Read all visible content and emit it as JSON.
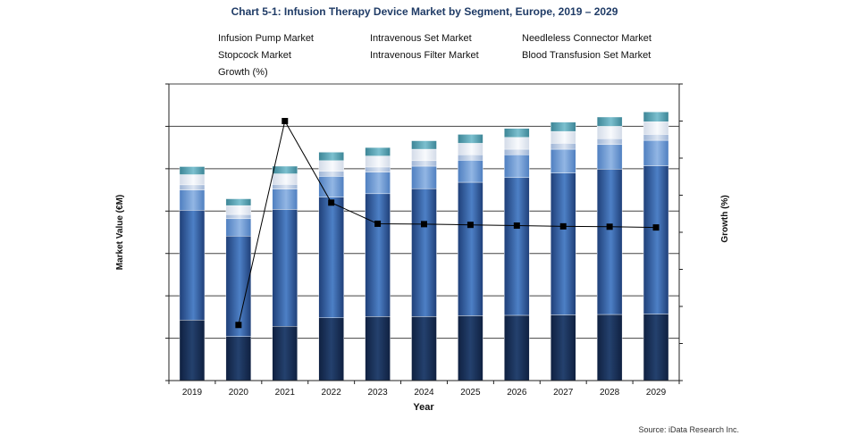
{
  "chart_data": {
    "type": "bar",
    "stacked": true,
    "title": "Chart 5-1: Infusion Therapy Device Market by Segment, Europe, 2019 – 2029",
    "xlabel": "Year",
    "ylabel": "Market Value (€M)",
    "y2label": "Growth (%)",
    "categories": [
      "2019",
      "2020",
      "2021",
      "2022",
      "2023",
      "2024",
      "2025",
      "2026",
      "2027",
      "2028",
      "2029"
    ],
    "ylim": [
      0,
      70
    ],
    "y2lim": [
      -40,
      40
    ],
    "grid": true,
    "legend_position": "top",
    "series": [
      {
        "name": "Infusion Pump Market",
        "values": [
          14.3,
          10.4,
          12.8,
          14.8,
          15.1,
          15.1,
          15.3,
          15.4,
          15.5,
          15.6,
          15.7
        ]
      },
      {
        "name": "Intravenous Set Market",
        "values": [
          25.9,
          23.7,
          27.6,
          28.5,
          29.0,
          30.2,
          31.5,
          32.5,
          33.5,
          34.3,
          35.0
        ]
      },
      {
        "name": "Needleless Connector Market",
        "values": [
          4.8,
          4.1,
          4.8,
          4.9,
          5.1,
          5.3,
          5.2,
          5.4,
          5.6,
          5.8,
          6.0
        ]
      },
      {
        "name": "Stopcock Market",
        "values": [
          1.2,
          1.0,
          1.1,
          1.2,
          1.2,
          1.3,
          1.3,
          1.3,
          1.4,
          1.4,
          1.4
        ]
      },
      {
        "name": "Intravenous Filter Market",
        "values": [
          2.4,
          2.1,
          2.5,
          2.5,
          2.6,
          2.7,
          2.7,
          2.8,
          2.8,
          2.9,
          3.0
        ]
      },
      {
        "name": "Blood Transfusion Set Market",
        "values": [
          1.9,
          1.6,
          1.8,
          2.0,
          2.0,
          2.0,
          2.1,
          2.1,
          2.2,
          2.2,
          2.3
        ]
      }
    ],
    "line_series": {
      "name": "Growth (%)",
      "axis": "right",
      "values": [
        null,
        -25.0,
        30.0,
        8.0,
        2.3,
        2.2,
        2.0,
        1.8,
        1.6,
        1.5,
        1.3
      ]
    },
    "colors": [
      "#1a3155",
      "#3a6cb3",
      "#7aa5db",
      "#c3d2e8",
      "#ebeff6",
      "#5fa5b5"
    ]
  },
  "source_note": "Source: iData Research Inc."
}
